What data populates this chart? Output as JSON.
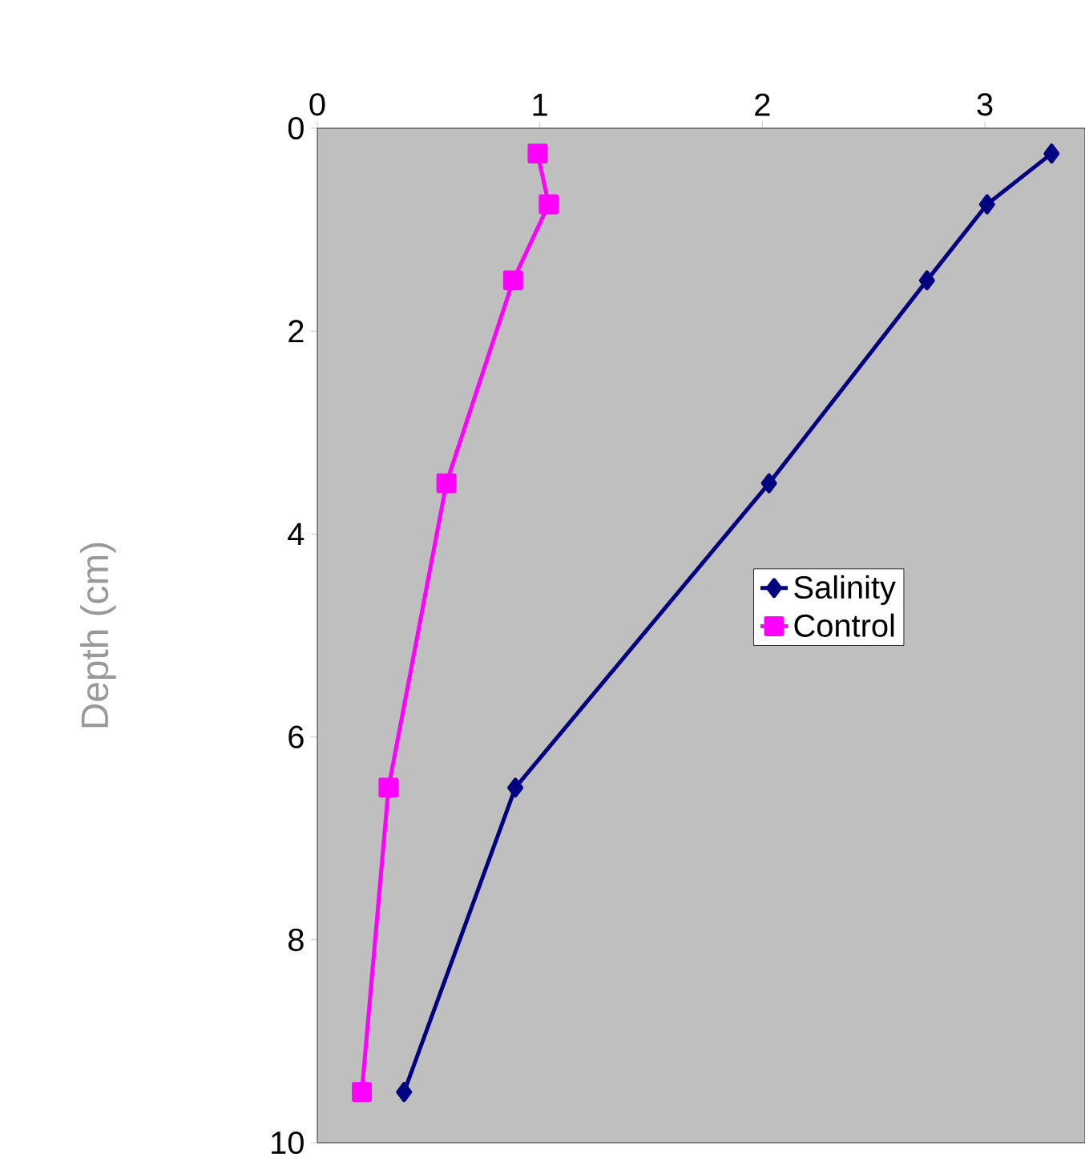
{
  "chart_data": {
    "type": "line",
    "ylabel": "Depth (cm)",
    "xlim": [
      0,
      3.45
    ],
    "xticks": [
      0,
      1,
      2,
      3
    ],
    "ylim": [
      10,
      0
    ],
    "yticks": [
      0,
      2,
      4,
      6,
      8,
      10
    ],
    "grid": false,
    "legend": "right",
    "series": [
      {
        "name": "Salinity",
        "color": "#000080",
        "marker": "diamond",
        "x": [
          3.3,
          3.01,
          2.74,
          2.03,
          0.89,
          0.39
        ],
        "values": [
          0.25,
          0.75,
          1.5,
          3.5,
          6.5,
          9.5
        ]
      },
      {
        "name": "Control",
        "color": "#ff00ff",
        "marker": "square",
        "x": [
          0.99,
          1.04,
          0.88,
          0.58,
          0.32,
          0.2
        ],
        "values": [
          0.25,
          0.75,
          1.5,
          3.5,
          6.5,
          9.5
        ]
      }
    ]
  }
}
